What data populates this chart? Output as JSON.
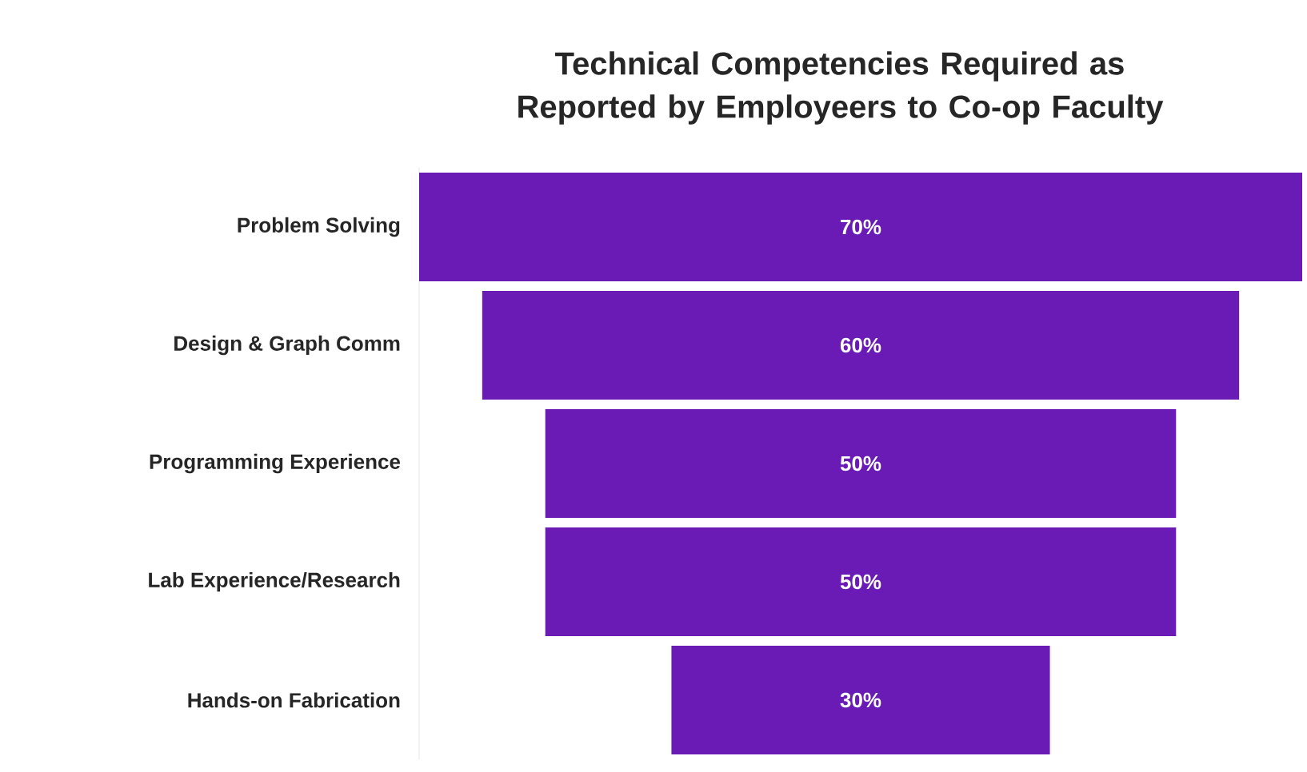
{
  "chart_data": {
    "type": "other",
    "title": "Technical Competencies Required as Reported by Employeers to Co-op Faculty",
    "categories": [
      "Problem Solving",
      "Design & Graph Comm",
      "Programming Experience",
      "Lab Experience/Research",
      "Hands-on Fabrication"
    ],
    "values": [
      70,
      60,
      50,
      50,
      30
    ],
    "value_labels": [
      "70%",
      "60%",
      "50%",
      "50%",
      "30%"
    ],
    "color": "#6a1bb5"
  }
}
